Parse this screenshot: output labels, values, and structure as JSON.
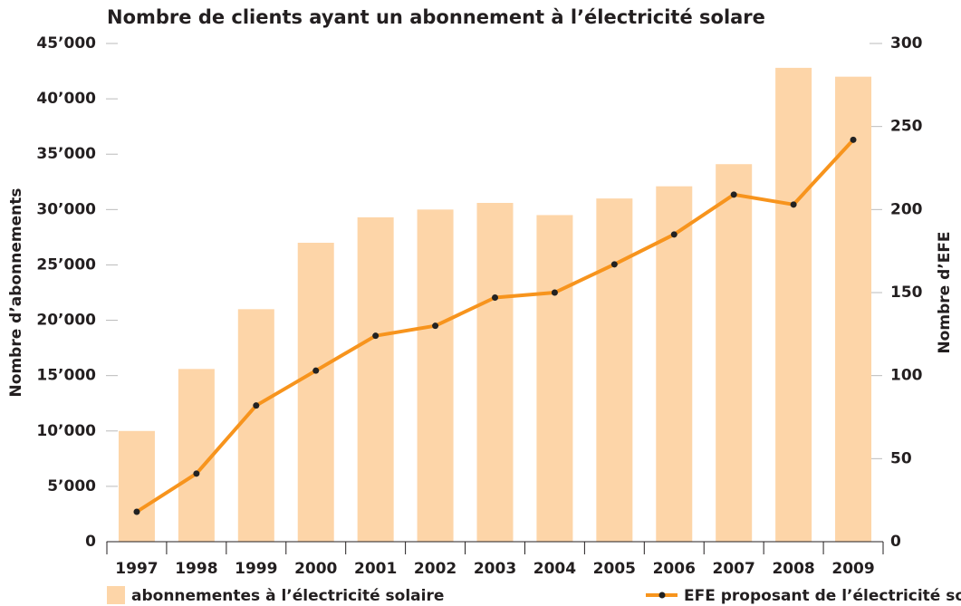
{
  "chart_data": {
    "type": "bar_line",
    "title": "Nombre de clients ayant un abonnement à l’électricité solare",
    "ylabel": "Nombre d’abonnements",
    "y2label": "Nombre d’EFE",
    "categories": [
      "1997",
      "1998",
      "1999",
      "2000",
      "2001",
      "2002",
      "2003",
      "2004",
      "2005",
      "2006",
      "2007",
      "2008",
      "2009"
    ],
    "series": [
      {
        "name": "abonnementes à l’électricité solaire",
        "type": "bar",
        "color": "#fdd5a8",
        "values": [
          10000,
          15600,
          21000,
          27000,
          29300,
          30000,
          30600,
          29500,
          31000,
          32100,
          34100,
          42800,
          42000
        ]
      },
      {
        "name": "EFE proposant de l’électricité solaire",
        "type": "line",
        "color": "#f7941d",
        "marker_color": "#222222",
        "axis": "y2",
        "values": [
          18,
          41,
          82,
          103,
          124,
          130,
          147,
          150,
          167,
          185,
          209,
          203,
          242
        ]
      }
    ],
    "ylim": [
      0,
      45000
    ],
    "yticks": [
      0,
      {
        "value": 5000,
        "label": "5’000"
      },
      {
        "value": 10000,
        "label": "10’000"
      },
      {
        "value": 15000,
        "label": "15’000"
      },
      {
        "value": 20000,
        "label": "20’000"
      },
      {
        "value": 25000,
        "label": "25’000"
      },
      {
        "value": 30000,
        "label": "30’000"
      },
      {
        "value": 35000,
        "label": "35’000"
      },
      {
        "value": 40000,
        "label": "40’000"
      },
      {
        "value": 45000,
        "label": "45’000"
      }
    ],
    "y2lim": [
      0,
      300
    ],
    "y2ticks": [
      0,
      50,
      100,
      150,
      200,
      250,
      300
    ]
  }
}
